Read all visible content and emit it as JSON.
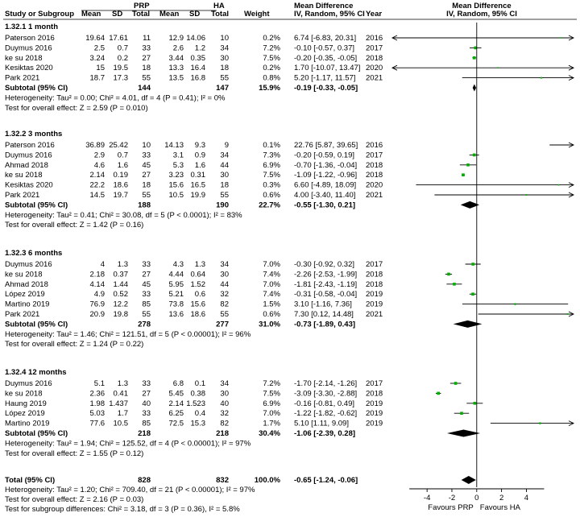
{
  "header": {
    "group1": "PRP",
    "group2": "HA",
    "md": "Mean Difference",
    "mdsub": "IV, Random, 95% CI",
    "md2": "Mean Difference",
    "md2sub": "IV, Random, 95% CI",
    "study": "Study or Subgroup",
    "mean1": "Mean",
    "sd1": "SD",
    "total1": "Total",
    "mean2": "Mean",
    "sd2": "SD",
    "total2": "Total",
    "weight": "Weight",
    "year": "Year"
  },
  "chart_data": {
    "type": "forest",
    "x_ticks": [
      "-4",
      "-2",
      "0",
      "2",
      "4"
    ],
    "x_tick_values": [
      -4,
      -2,
      0,
      2,
      4
    ],
    "xlim": [
      -6.8,
      7.8
    ],
    "favours_left": "Favours PRP",
    "favours_right": "Favours HA",
    "groups": [
      {
        "title": "1.32.1 1 month",
        "studies": [
          {
            "name": "Paterson 2016",
            "m1": "19.64",
            "sd1": "17.61",
            "n1": "11",
            "m2": "12.9",
            "sd2": "14.06",
            "n2": "10",
            "w": "0.2%",
            "ci": "6.74 [-6.83, 20.31]",
            "year": "2016",
            "md": 6.74,
            "lo": -6.83,
            "hi": 20.31,
            "wt": 0.2
          },
          {
            "name": "Duymus 2016",
            "m1": "2.5",
            "sd1": "0.7",
            "n1": "33",
            "m2": "2.6",
            "sd2": "1.2",
            "n2": "34",
            "w": "7.2%",
            "ci": "-0.10 [-0.57, 0.37]",
            "year": "2017",
            "md": -0.1,
            "lo": -0.57,
            "hi": 0.37,
            "wt": 7.2
          },
          {
            "name": "ke su 2018",
            "m1": "3.24",
            "sd1": "0.2",
            "n1": "27",
            "m2": "3.44",
            "sd2": "0.35",
            "n2": "30",
            "w": "7.5%",
            "ci": "-0.20 [-0.35, -0.05]",
            "year": "2018",
            "md": -0.2,
            "lo": -0.35,
            "hi": -0.05,
            "wt": 7.5
          },
          {
            "name": "Kesiktas 2020",
            "m1": "15",
            "sd1": "19.5",
            "n1": "18",
            "m2": "13.3",
            "sd2": "16.4",
            "n2": "18",
            "w": "0.2%",
            "ci": "1.70 [-10.07, 13.47]",
            "year": "2020",
            "md": 1.7,
            "lo": -10.07,
            "hi": 13.47,
            "wt": 0.2
          },
          {
            "name": "Park 2021",
            "m1": "18.7",
            "sd1": "17.3",
            "n1": "55",
            "m2": "13.5",
            "sd2": "16.8",
            "n2": "55",
            "w": "0.8%",
            "ci": "5.20 [-1.17, 11.57]",
            "year": "2021",
            "md": 5.2,
            "lo": -1.17,
            "hi": 11.57,
            "wt": 0.8
          }
        ],
        "subtotal": {
          "label": "Subtotal (95% CI)",
          "n1": "144",
          "n2": "147",
          "w": "15.9%",
          "ci": "-0.19 [-0.33, -0.05]",
          "md": -0.19,
          "lo": -0.33,
          "hi": -0.05
        },
        "het": "Heterogeneity: Tau² = 0.00; Chi² = 4.01, df = 4 (P = 0.41); I² = 0%",
        "test": "Test for overall effect: Z = 2.59 (P = 0.010)"
      },
      {
        "title": "1.32.2 3 months",
        "studies": [
          {
            "name": "Paterson 2016",
            "m1": "36.89",
            "sd1": "25.42",
            "n1": "10",
            "m2": "14.13",
            "sd2": "9.3",
            "n2": "9",
            "w": "0.1%",
            "ci": "22.76 [5.87, 39.65]",
            "year": "2016",
            "md": 22.76,
            "lo": 5.87,
            "hi": 39.65,
            "wt": 0.1
          },
          {
            "name": "Duymus 2016",
            "m1": "2.9",
            "sd1": "0.7",
            "n1": "33",
            "m2": "3.1",
            "sd2": "0.9",
            "n2": "34",
            "w": "7.3%",
            "ci": "-0.20 [-0.59, 0.19]",
            "year": "2017",
            "md": -0.2,
            "lo": -0.59,
            "hi": 0.19,
            "wt": 7.3
          },
          {
            "name": "Ahmad 2018",
            "m1": "4.6",
            "sd1": "1.6",
            "n1": "45",
            "m2": "5.3",
            "sd2": "1.6",
            "n2": "44",
            "w": "6.9%",
            "ci": "-0.70 [-1.36, -0.04]",
            "year": "2018",
            "md": -0.7,
            "lo": -1.36,
            "hi": -0.04,
            "wt": 6.9
          },
          {
            "name": "ke su 2018",
            "m1": "2.14",
            "sd1": "0.19",
            "n1": "27",
            "m2": "3.23",
            "sd2": "0.31",
            "n2": "30",
            "w": "7.5%",
            "ci": "-1.09 [-1.22, -0.96]",
            "year": "2018",
            "md": -1.09,
            "lo": -1.22,
            "hi": -0.96,
            "wt": 7.5
          },
          {
            "name": "Kesiktas 2020",
            "m1": "22.2",
            "sd1": "18.6",
            "n1": "18",
            "m2": "15.6",
            "sd2": "16.5",
            "n2": "18",
            "w": "0.3%",
            "ci": "6.60 [-4.89, 18.09]",
            "year": "2020",
            "md": 6.6,
            "lo": -4.89,
            "hi": 18.09,
            "wt": 0.3
          },
          {
            "name": "Park 2021",
            "m1": "14.5",
            "sd1": "19.7",
            "n1": "55",
            "m2": "10.5",
            "sd2": "19.9",
            "n2": "55",
            "w": "0.6%",
            "ci": "4.00 [-3.40, 11.40]",
            "year": "2021",
            "md": 4.0,
            "lo": -3.4,
            "hi": 11.4,
            "wt": 0.6
          }
        ],
        "subtotal": {
          "label": "Subtotal (95% CI)",
          "n1": "188",
          "n2": "190",
          "w": "22.7%",
          "ci": "-0.55 [-1.30, 0.21]",
          "md": -0.55,
          "lo": -1.3,
          "hi": 0.21
        },
        "het": "Heterogeneity: Tau² = 0.41; Chi² = 30.08, df = 5 (P < 0.0001); I² = 83%",
        "test": "Test for overall effect: Z = 1.42 (P = 0.16)"
      },
      {
        "title": "1.32.3 6 months",
        "studies": [
          {
            "name": "Duymus 2016",
            "m1": "4",
            "sd1": "1.3",
            "n1": "33",
            "m2": "4.3",
            "sd2": "1.3",
            "n2": "34",
            "w": "7.0%",
            "ci": "-0.30 [-0.92, 0.32]",
            "year": "2017",
            "md": -0.3,
            "lo": -0.92,
            "hi": 0.32,
            "wt": 7.0
          },
          {
            "name": "ke su 2018",
            "m1": "2.18",
            "sd1": "0.37",
            "n1": "27",
            "m2": "4.44",
            "sd2": "0.64",
            "n2": "30",
            "w": "7.4%",
            "ci": "-2.26 [-2.53, -1.99]",
            "year": "2018",
            "md": -2.26,
            "lo": -2.53,
            "hi": -1.99,
            "wt": 7.4
          },
          {
            "name": "Ahmad 2018",
            "m1": "4.14",
            "sd1": "1.44",
            "n1": "45",
            "m2": "5.95",
            "sd2": "1.52",
            "n2": "44",
            "w": "7.0%",
            "ci": "-1.81 [-2.43, -1.19]",
            "year": "2018",
            "md": -1.81,
            "lo": -2.43,
            "hi": -1.19,
            "wt": 7.0
          },
          {
            "name": "López 2019",
            "m1": "4.9",
            "sd1": "0.52",
            "n1": "33",
            "m2": "5.21",
            "sd2": "0.6",
            "n2": "32",
            "w": "7.4%",
            "ci": "-0.31 [-0.58, -0.04]",
            "year": "2019",
            "md": -0.31,
            "lo": -0.58,
            "hi": -0.04,
            "wt": 7.4
          },
          {
            "name": "Martino 2019",
            "m1": "76.9",
            "sd1": "12.2",
            "n1": "85",
            "m2": "73.8",
            "sd2": "15.6",
            "n2": "82",
            "w": "1.5%",
            "ci": "3.10 [-1.16, 7.36]",
            "year": "2019",
            "md": 3.1,
            "lo": -1.16,
            "hi": 7.36,
            "wt": 1.5
          },
          {
            "name": "Park 2021",
            "m1": "20.9",
            "sd1": "19.8",
            "n1": "55",
            "m2": "13.6",
            "sd2": "18.6",
            "n2": "55",
            "w": "0.6%",
            "ci": "7.30 [0.12, 14.48]",
            "year": "2021",
            "md": 7.3,
            "lo": 0.12,
            "hi": 14.48,
            "wt": 0.6
          }
        ],
        "subtotal": {
          "label": "Subtotal (95% CI)",
          "n1": "278",
          "n2": "277",
          "w": "31.0%",
          "ci": "-0.73 [-1.89, 0.43]",
          "md": -0.73,
          "lo": -1.89,
          "hi": 0.43
        },
        "het": "Heterogeneity: Tau² = 1.46; Chi² = 121.51, df = 5 (P < 0.00001); I² = 96%",
        "test": "Test for overall effect: Z = 1.24 (P = 0.22)"
      },
      {
        "title": "1.32.4 12 months",
        "studies": [
          {
            "name": "Duymus 2016",
            "m1": "5.1",
            "sd1": "1.3",
            "n1": "33",
            "m2": "6.8",
            "sd2": "0.1",
            "n2": "34",
            "w": "7.2%",
            "ci": "-1.70 [-2.14, -1.26]",
            "year": "2017",
            "md": -1.7,
            "lo": -2.14,
            "hi": -1.26,
            "wt": 7.2
          },
          {
            "name": "ke su 2018",
            "m1": "2.36",
            "sd1": "0.41",
            "n1": "27",
            "m2": "5.45",
            "sd2": "0.38",
            "n2": "30",
            "w": "7.5%",
            "ci": "-3.09 [-3.30, -2.88]",
            "year": "2018",
            "md": -3.09,
            "lo": -3.3,
            "hi": -2.88,
            "wt": 7.5
          },
          {
            "name": "Haung 2019",
            "m1": "1.98",
            "sd1": "1.437",
            "n1": "40",
            "m2": "2.14",
            "sd2": "1.523",
            "n2": "40",
            "w": "6.9%",
            "ci": "-0.16 [-0.81, 0.49]",
            "year": "2019",
            "md": -0.16,
            "lo": -0.81,
            "hi": 0.49,
            "wt": 6.9
          },
          {
            "name": "López 2019",
            "m1": "5.03",
            "sd1": "1.7",
            "n1": "33",
            "m2": "6.25",
            "sd2": "0.4",
            "n2": "32",
            "w": "7.0%",
            "ci": "-1.22 [-1.82, -0.62]",
            "year": "2019",
            "md": -1.22,
            "lo": -1.82,
            "hi": -0.62,
            "wt": 7.0
          },
          {
            "name": "Martino 2019",
            "m1": "77.6",
            "sd1": "10.5",
            "n1": "85",
            "m2": "72.5",
            "sd2": "15.3",
            "n2": "82",
            "w": "1.7%",
            "ci": "5.10 [1.11, 9.09]",
            "year": "2019",
            "md": 5.1,
            "lo": 1.11,
            "hi": 9.09,
            "wt": 1.7
          }
        ],
        "subtotal": {
          "label": "Subtotal (95% CI)",
          "n1": "218",
          "n2": "218",
          "w": "30.4%",
          "ci": "-1.06 [-2.39, 0.28]",
          "md": -1.06,
          "lo": -2.39,
          "hi": 0.28
        },
        "het": "Heterogeneity: Tau² = 1.94; Chi² = 125.52, df = 4 (P < 0.00001); I² = 97%",
        "test": "Test for overall effect: Z = 1.55 (P = 0.12)"
      }
    ],
    "total": {
      "label": "Total (95% CI)",
      "n1": "828",
      "n2": "832",
      "w": "100.0%",
      "ci": "-0.65 [-1.24, -0.06]",
      "md": -0.65,
      "lo": -1.24,
      "hi": -0.06
    },
    "footer": [
      "Heterogeneity: Tau² = 1.20; Chi² = 709.40, df = 21 (P < 0.00001); I² = 97%",
      "Test for overall effect: Z = 2.16 (P = 0.03)",
      "Test for subgroup differences: Chi² = 3.18, df = 3 (P = 0.36), I² = 5.8%"
    ],
    "colors": {
      "point": "#00b000",
      "diamond": "#000000",
      "line": "#000000"
    }
  }
}
